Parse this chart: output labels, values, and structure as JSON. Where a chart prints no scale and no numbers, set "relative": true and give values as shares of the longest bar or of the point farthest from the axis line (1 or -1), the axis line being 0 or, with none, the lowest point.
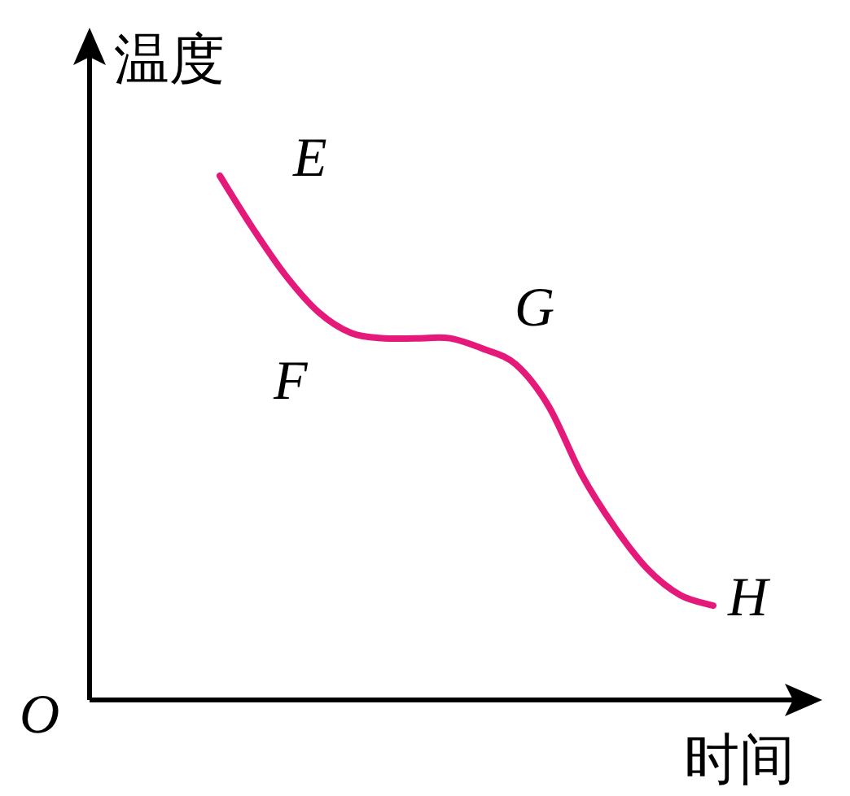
{
  "chart_data": {
    "type": "line",
    "relative": true,
    "ylabel": "温度",
    "xlabel": "时间",
    "color": "#e5197a",
    "categories": [
      null,
      null,
      null,
      null,
      null,
      null,
      null,
      null,
      null,
      null,
      null,
      null,
      null,
      null,
      null,
      null
    ],
    "values": [
      1,
      0.9,
      0.81,
      0.74,
      0.7,
      0.69,
      0.69,
      0.69,
      0.67,
      0.64,
      0.56,
      0.43,
      0.33,
      0.25,
      0.2,
      0.18
    ],
    "annotations": [
      "O",
      "E",
      "F",
      "G",
      "H"
    ]
  }
}
